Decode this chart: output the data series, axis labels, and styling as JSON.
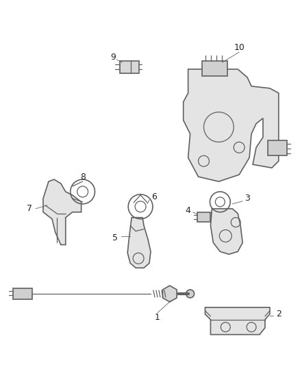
{
  "background_color": "#ffffff",
  "line_color": "#606060",
  "fill_color": "#e0e0e0",
  "label_color": "#222222",
  "fig_width": 4.38,
  "fig_height": 5.33,
  "dpi": 100
}
